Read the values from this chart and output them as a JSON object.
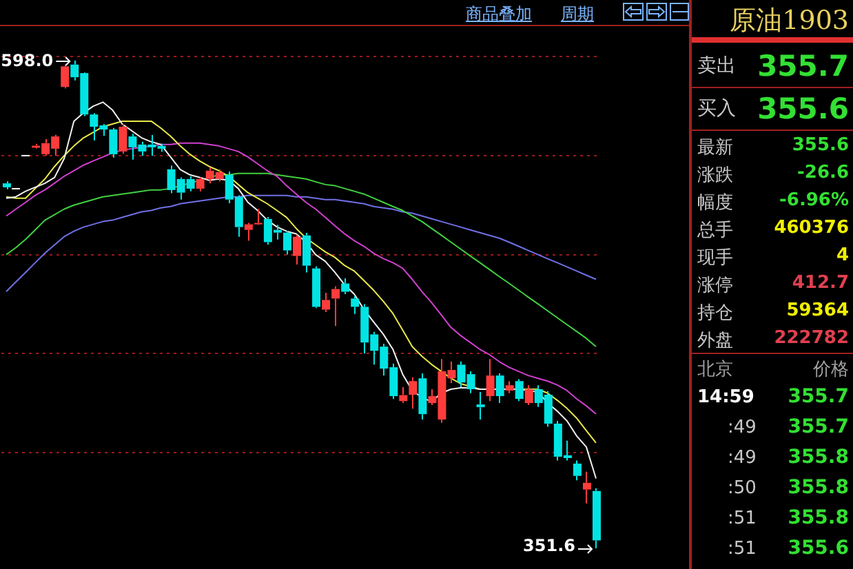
{
  "chart_data": [
    {
      "type": "candlestick",
      "categories": [
        null,
        null,
        null,
        null,
        null,
        null,
        null,
        null,
        null,
        null,
        null,
        null,
        null,
        null,
        null,
        null,
        null,
        null,
        null,
        null,
        null,
        null,
        null,
        null,
        null,
        null,
        null,
        null,
        null,
        null,
        null,
        null,
        null,
        null,
        null,
        null,
        null,
        null,
        null,
        null,
        null,
        null,
        null,
        null,
        null,
        null,
        null,
        null,
        null,
        null,
        null,
        null,
        null,
        null,
        null,
        null,
        null,
        null,
        null,
        null,
        null,
        null
      ],
      "ohlc": [
        [
          536,
          537,
          533,
          534
        ],
        [
          533.3,
          533.3,
          533.3,
          533.3
        ],
        [
          550,
          550,
          550,
          550
        ],
        [
          554,
          556,
          553.5,
          555
        ],
        [
          550.7,
          558.3,
          550,
          556.3
        ],
        [
          553.5,
          560.5,
          550,
          559.7
        ],
        [
          584.7,
          596,
          584,
          595.1
        ],
        [
          596,
          598.0,
          588,
          589.6
        ],
        [
          591.7,
          592,
          570,
          570.8
        ],
        [
          570.8,
          571.5,
          557.6,
          564.6
        ],
        [
          565.3,
          566,
          560,
          563.2
        ],
        [
          563.2,
          564,
          549,
          550.7
        ],
        [
          552.1,
          566,
          551,
          564.6
        ],
        [
          559.7,
          561,
          548,
          554.2
        ],
        [
          555.6,
          557,
          550,
          552.1
        ],
        [
          555.6,
          560.4,
          550,
          554.2
        ],
        [
          554.9,
          556,
          552,
          553.5
        ],
        [
          543.1,
          545,
          531,
          532.6
        ],
        [
          538.2,
          539,
          527.8,
          531.3
        ],
        [
          538.2,
          539.5,
          532,
          533.3
        ],
        [
          533.3,
          539,
          532,
          538.2
        ],
        [
          538.2,
          544,
          536,
          542.4
        ],
        [
          538.2,
          543,
          537,
          541.7
        ],
        [
          540.3,
          542,
          526,
          527.8
        ],
        [
          529.2,
          530,
          509,
          513.9
        ],
        [
          512.5,
          516,
          507,
          515.3
        ],
        [
          515.3,
          523,
          515,
          516
        ],
        [
          518,
          519,
          505,
          506.3
        ],
        [
          512.5,
          515,
          507.6,
          511.1
        ],
        [
          511.1,
          512,
          500,
          502.1
        ],
        [
          499.3,
          510,
          495,
          509
        ],
        [
          509.7,
          511,
          491,
          494.4
        ],
        [
          493,
          494,
          473,
          473.6
        ],
        [
          472.2,
          480.6,
          471,
          477.1
        ],
        [
          477.8,
          484,
          463.9,
          482.6
        ],
        [
          485.4,
          488,
          480,
          481.2
        ],
        [
          477.8,
          479,
          470,
          473.6
        ],
        [
          473.6,
          475,
          450,
          455.6
        ],
        [
          459.7,
          461,
          444.4,
          451.4
        ],
        [
          453.5,
          455,
          438.9,
          442.4
        ],
        [
          443.1,
          445,
          427,
          428.5
        ],
        [
          426,
          433,
          425,
          429
        ],
        [
          429.2,
          438,
          422.2,
          436.1
        ],
        [
          437.5,
          440,
          416.7,
          419.4
        ],
        [
          425,
          432,
          424,
          428.5
        ],
        [
          416.7,
          447.2,
          415,
          441
        ],
        [
          437.5,
          446,
          435,
          441.7
        ],
        [
          444.4,
          446,
          433,
          435.4
        ],
        [
          439.6,
          441,
          430,
          432
        ],
        [
          424.3,
          430.6,
          416.7,
          422.9
        ],
        [
          428.5,
          447.2,
          426,
          438.9
        ],
        [
          438.9,
          440,
          425,
          428.5
        ],
        [
          431.3,
          436,
          430,
          434
        ],
        [
          436.1,
          437,
          426,
          427.1
        ],
        [
          425,
          434,
          424,
          432
        ],
        [
          432,
          434,
          423,
          425
        ],
        [
          429.2,
          431,
          413,
          414.6
        ],
        [
          414.6,
          416,
          396,
          397.9
        ],
        [
          398.6,
          406,
          396,
          397.2
        ],
        [
          394.4,
          396,
          386,
          388.2
        ],
        [
          381.3,
          390.3,
          374.3,
          384.7
        ],
        [
          380.6,
          382,
          351.6,
          355.6
        ]
      ],
      "series": [
        {
          "type": "line",
          "color": "#f0f0f0",
          "values": [
            528.5,
            529.2,
            532,
            534,
            536,
            539,
            548.6,
            567.4,
            571.6,
            575,
            577,
            573,
            566,
            562.5,
            559,
            557,
            555.6,
            549.3,
            543,
            540.3,
            539,
            537.5,
            538.2,
            537.5,
            533.4,
            526.4,
            522.3,
            517.4,
            514,
            511.8,
            510.5,
            506.3,
            500,
            496.6,
            491,
            484.8,
            480,
            472.3,
            466,
            459.8,
            452.1,
            439.6,
            431.3,
            427.8,
            425.7,
            430,
            432,
            432.7,
            432.7,
            432,
            432,
            432,
            432,
            432,
            431.3,
            430.6,
            425,
            420.9,
            416,
            408.4,
            402.8,
            386.9
          ]
        },
        {
          "type": "line",
          "color": "#e8e84a",
          "values": [
            529.2,
            528.5,
            528.5,
            533.4,
            538.2,
            544.5,
            550,
            554.9,
            559,
            561.8,
            564.6,
            566,
            567.4,
            567.4,
            567.4,
            567.4,
            563.9,
            559.8,
            554.9,
            550.7,
            547.3,
            544.5,
            542.4,
            539.6,
            535.4,
            531.3,
            528.5,
            525.7,
            522.3,
            518.8,
            513.2,
            508.4,
            504.9,
            501.4,
            498.6,
            494.5,
            491.7,
            486.9,
            482,
            476.4,
            470.2,
            461.9,
            453.5,
            448.6,
            444.5,
            441,
            437.5,
            434.8,
            433.4,
            432,
            432,
            432,
            432,
            432,
            432,
            432,
            430,
            426.4,
            422.3,
            417.4,
            411.1,
            404.9
          ]
        },
        {
          "type": "line",
          "color": "#d040d0",
          "values": [
            519.5,
            523,
            526.4,
            529.9,
            532.7,
            536.1,
            539.6,
            542.4,
            545.2,
            547.3,
            549.3,
            551.4,
            552.8,
            553.5,
            554.2,
            554.9,
            555.6,
            555.6,
            556.3,
            556.3,
            556.3,
            555.6,
            554.9,
            553.5,
            552.1,
            549.3,
            545.9,
            542.4,
            539.6,
            534.8,
            530.6,
            526.4,
            523,
            518.8,
            514.6,
            510.5,
            507,
            504.2,
            500.7,
            498,
            495.9,
            493.1,
            487.5,
            481.3,
            475.7,
            469.5,
            463.2,
            459.1,
            455.6,
            452.1,
            449.4,
            445.9,
            443.1,
            441,
            438.9,
            437.5,
            436.1,
            434.1,
            431.3,
            427.1,
            423.6,
            419.5
          ]
        },
        {
          "type": "line",
          "color": "#40d040",
          "values": [
            500,
            503.5,
            507.7,
            512.5,
            517.4,
            520.2,
            523,
            525,
            526.4,
            527.8,
            529.2,
            529.9,
            530.6,
            531.3,
            532,
            532.7,
            532.7,
            533.4,
            534.8,
            536.1,
            537.5,
            538.9,
            540.3,
            540.3,
            541,
            541,
            541,
            541,
            540.3,
            539.6,
            538.9,
            538.2,
            536.8,
            535.4,
            534.8,
            533.4,
            532,
            530.6,
            528.5,
            526.4,
            524.3,
            522.3,
            519.5,
            516.7,
            513.2,
            509.8,
            506.3,
            502.8,
            499.3,
            495.9,
            492.4,
            488.9,
            485.5,
            482,
            478.5,
            475.1,
            471.6,
            468.1,
            464.6,
            461.2,
            457.7,
            453.5
          ]
        },
        {
          "type": "line",
          "color": "#7070e8",
          "values": [
            481.3,
            486.2,
            491,
            495.9,
            500.7,
            504.9,
            509.1,
            511.8,
            513.9,
            515.3,
            516.7,
            517.4,
            518.8,
            520.2,
            521.6,
            522.3,
            523.6,
            524.3,
            525.7,
            526.4,
            527.1,
            527.8,
            528.5,
            529.2,
            529.2,
            529.9,
            529.9,
            529.9,
            529.9,
            529.9,
            529.2,
            529.2,
            528.5,
            527.8,
            527.8,
            527.1,
            526.4,
            525.7,
            524.3,
            523.6,
            522.9,
            521.6,
            520.9,
            519.5,
            518.1,
            516.7,
            515.3,
            513.9,
            512.5,
            511.1,
            509.7,
            508.3,
            506.3,
            504.2,
            502.1,
            500,
            497.9,
            495.9,
            493.8,
            491.7,
            489.6,
            487.5
          ]
        }
      ],
      "yticks": [
        {
          "value": 400,
          "label": null
        },
        {
          "value": 450,
          "label": null
        },
        {
          "value": 500,
          "label": null
        },
        {
          "value": 550,
          "label": null
        },
        {
          "value": 600,
          "label": null
        }
      ],
      "grid": "y",
      "tick_labels": false,
      "annotations": [
        "598.0",
        "351.6",
        "商品叠加",
        "周期"
      ]
    },
    {
      "type": "other",
      "title": "原油1903",
      "annotations": [
        "卖出",
        "355.7",
        "买入",
        "355.6",
        "最新",
        "355.6",
        "涨跌",
        "-26.6",
        "幅度",
        "-6.96%",
        "总手",
        "460376",
        "现手",
        "4",
        "涨停",
        "412.7",
        "持仓",
        "59364",
        "外盘",
        "222782",
        "北京",
        "价格",
        "14:59",
        "355.7",
        ":49",
        "355.7",
        ":49",
        "355.8",
        ":50",
        "355.8",
        ":51",
        "355.8",
        ":51",
        "355.6"
      ],
      "colors": [
        "#c8c8c8",
        "#33e033",
        "#c8c8c8",
        "#33e033",
        "#c8c8c8",
        "#33e033",
        "#c8c8c8",
        "#33e033",
        "#c8c8c8",
        "#33e033",
        "#c8c8c8",
        "#f0f000",
        "#c8c8c8",
        "#f0f000",
        "#c8c8c8",
        "#e04050",
        "#c8c8c8",
        "#f0f000",
        "#c8c8c8",
        "#e04050",
        "#a0a0a0",
        "#a0a0a0",
        "#ffffff",
        "#33e033",
        "#c8c8c8",
        "#33e033",
        "#c8c8c8",
        "#33e033",
        "#c8c8c8",
        "#33e033",
        "#c8c8c8",
        "#33e033",
        "#c8c8c8",
        "#33e033"
      ]
    }
  ]
}
